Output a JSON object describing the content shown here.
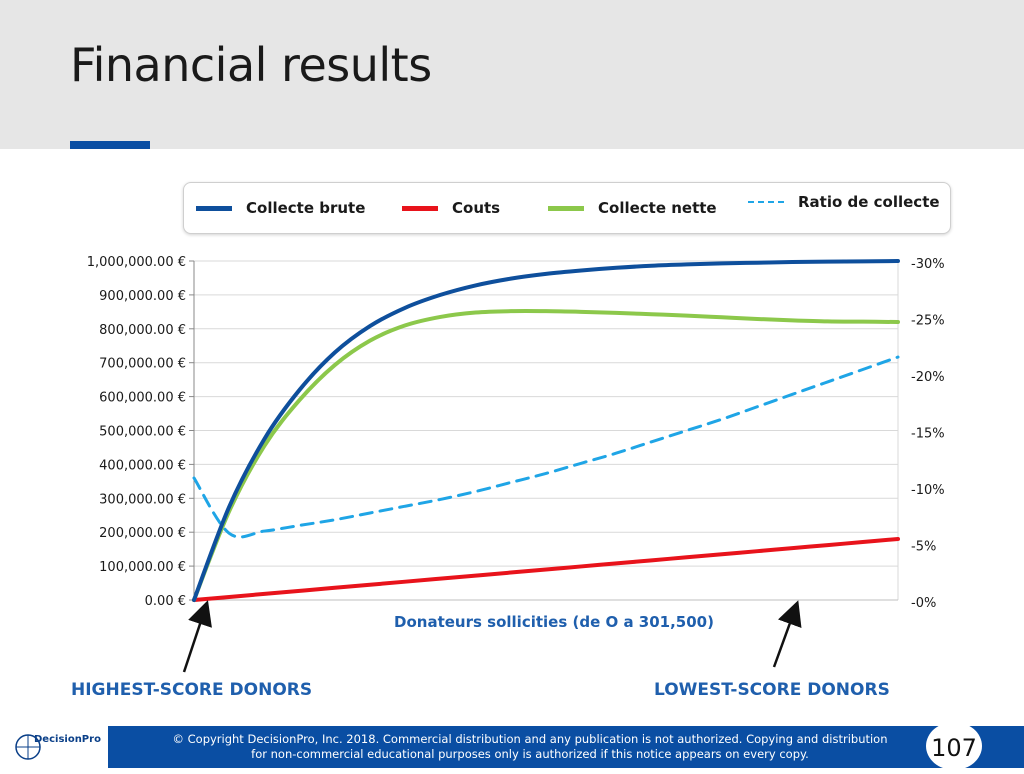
{
  "slide": {
    "title": "Financial results",
    "page_number": "107",
    "left_annotation": "HIGHEST-SCORE DONORS",
    "right_annotation": "LOWEST-SCORE DONORS"
  },
  "footer": {
    "line1": "© Copyright DecisionPro, Inc.  2018. Commercial distribution and any publication is not authorized. Copying and distribution",
    "line2": "for non-commercial educational purposes only is authorized if this notice appears on every copy.",
    "logo_text": "DecisionPro"
  },
  "colors": {
    "accent": "#0a4ea3",
    "collecte_brute": "#0e4f9c",
    "couts": "#e8131b",
    "collecte_nette": "#8cc84b",
    "ratio": "#1fa5e6",
    "label_blue": "#1f5fad"
  },
  "chart_data": {
    "type": "line",
    "xlabel": "Donateurs sollicities (de O a 301,500)",
    "x_range": [
      0,
      301500
    ],
    "y_left_ticks": [
      "0.00 €",
      "100,000.00 €",
      "200,000.00 €",
      "300,000.00 €",
      "400,000.00 €",
      "500,000.00 €",
      "600,000.00 €",
      "700,000.00 €",
      "800,000.00 €",
      "900,000.00 €",
      "1,000,000.00 €"
    ],
    "y_left_range": [
      0,
      1000000
    ],
    "y_right_ticks": [
      "-0%",
      "-5%",
      "-10%",
      "-15%",
      "-20%",
      "-25%",
      "-30%"
    ],
    "y_right_range": [
      0,
      30
    ],
    "legend_position": "top",
    "grid": true,
    "x": [
      0,
      15075,
      30150,
      45225,
      60300,
      75375,
      90450,
      105525,
      120600,
      135675,
      150750,
      165825,
      180900,
      195975,
      211050,
      226125,
      241200,
      256275,
      271350,
      286425,
      301500
    ],
    "series": [
      {
        "name": "Collecte brute",
        "axis": "left",
        "style": "solid",
        "values": [
          0,
          275000,
          475000,
          620000,
          730000,
          808000,
          862000,
          900000,
          928000,
          948000,
          962000,
          972000,
          980000,
          986000,
          990000,
          993000,
          995000,
          997000,
          998000,
          999000,
          1000000
        ]
      },
      {
        "name": "Couts",
        "axis": "left",
        "style": "solid",
        "values": [
          0,
          9000,
          18000,
          27000,
          36000,
          45000,
          54000,
          63000,
          72000,
          81000,
          90000,
          99000,
          108000,
          117000,
          126000,
          135000,
          144000,
          153000,
          162000,
          171000,
          180000
        ]
      },
      {
        "name": "Collecte nette",
        "axis": "left",
        "style": "solid",
        "values": [
          0,
          262000,
          455000,
          590000,
          693000,
          765000,
          810000,
          835000,
          848000,
          852000,
          852000,
          850000,
          847000,
          843000,
          839000,
          834000,
          829000,
          825000,
          822000,
          821000,
          820000
        ]
      },
      {
        "name": "Ratio de collecte",
        "axis": "right",
        "style": "dashed",
        "values": [
          10.8,
          5.9,
          6.1,
          6.6,
          7.1,
          7.7,
          8.3,
          8.9,
          9.6,
          10.4,
          11.2,
          12.1,
          13.0,
          14.0,
          15.0,
          16.0,
          17.1,
          18.2,
          19.3,
          20.4,
          21.5
        ]
      }
    ]
  }
}
